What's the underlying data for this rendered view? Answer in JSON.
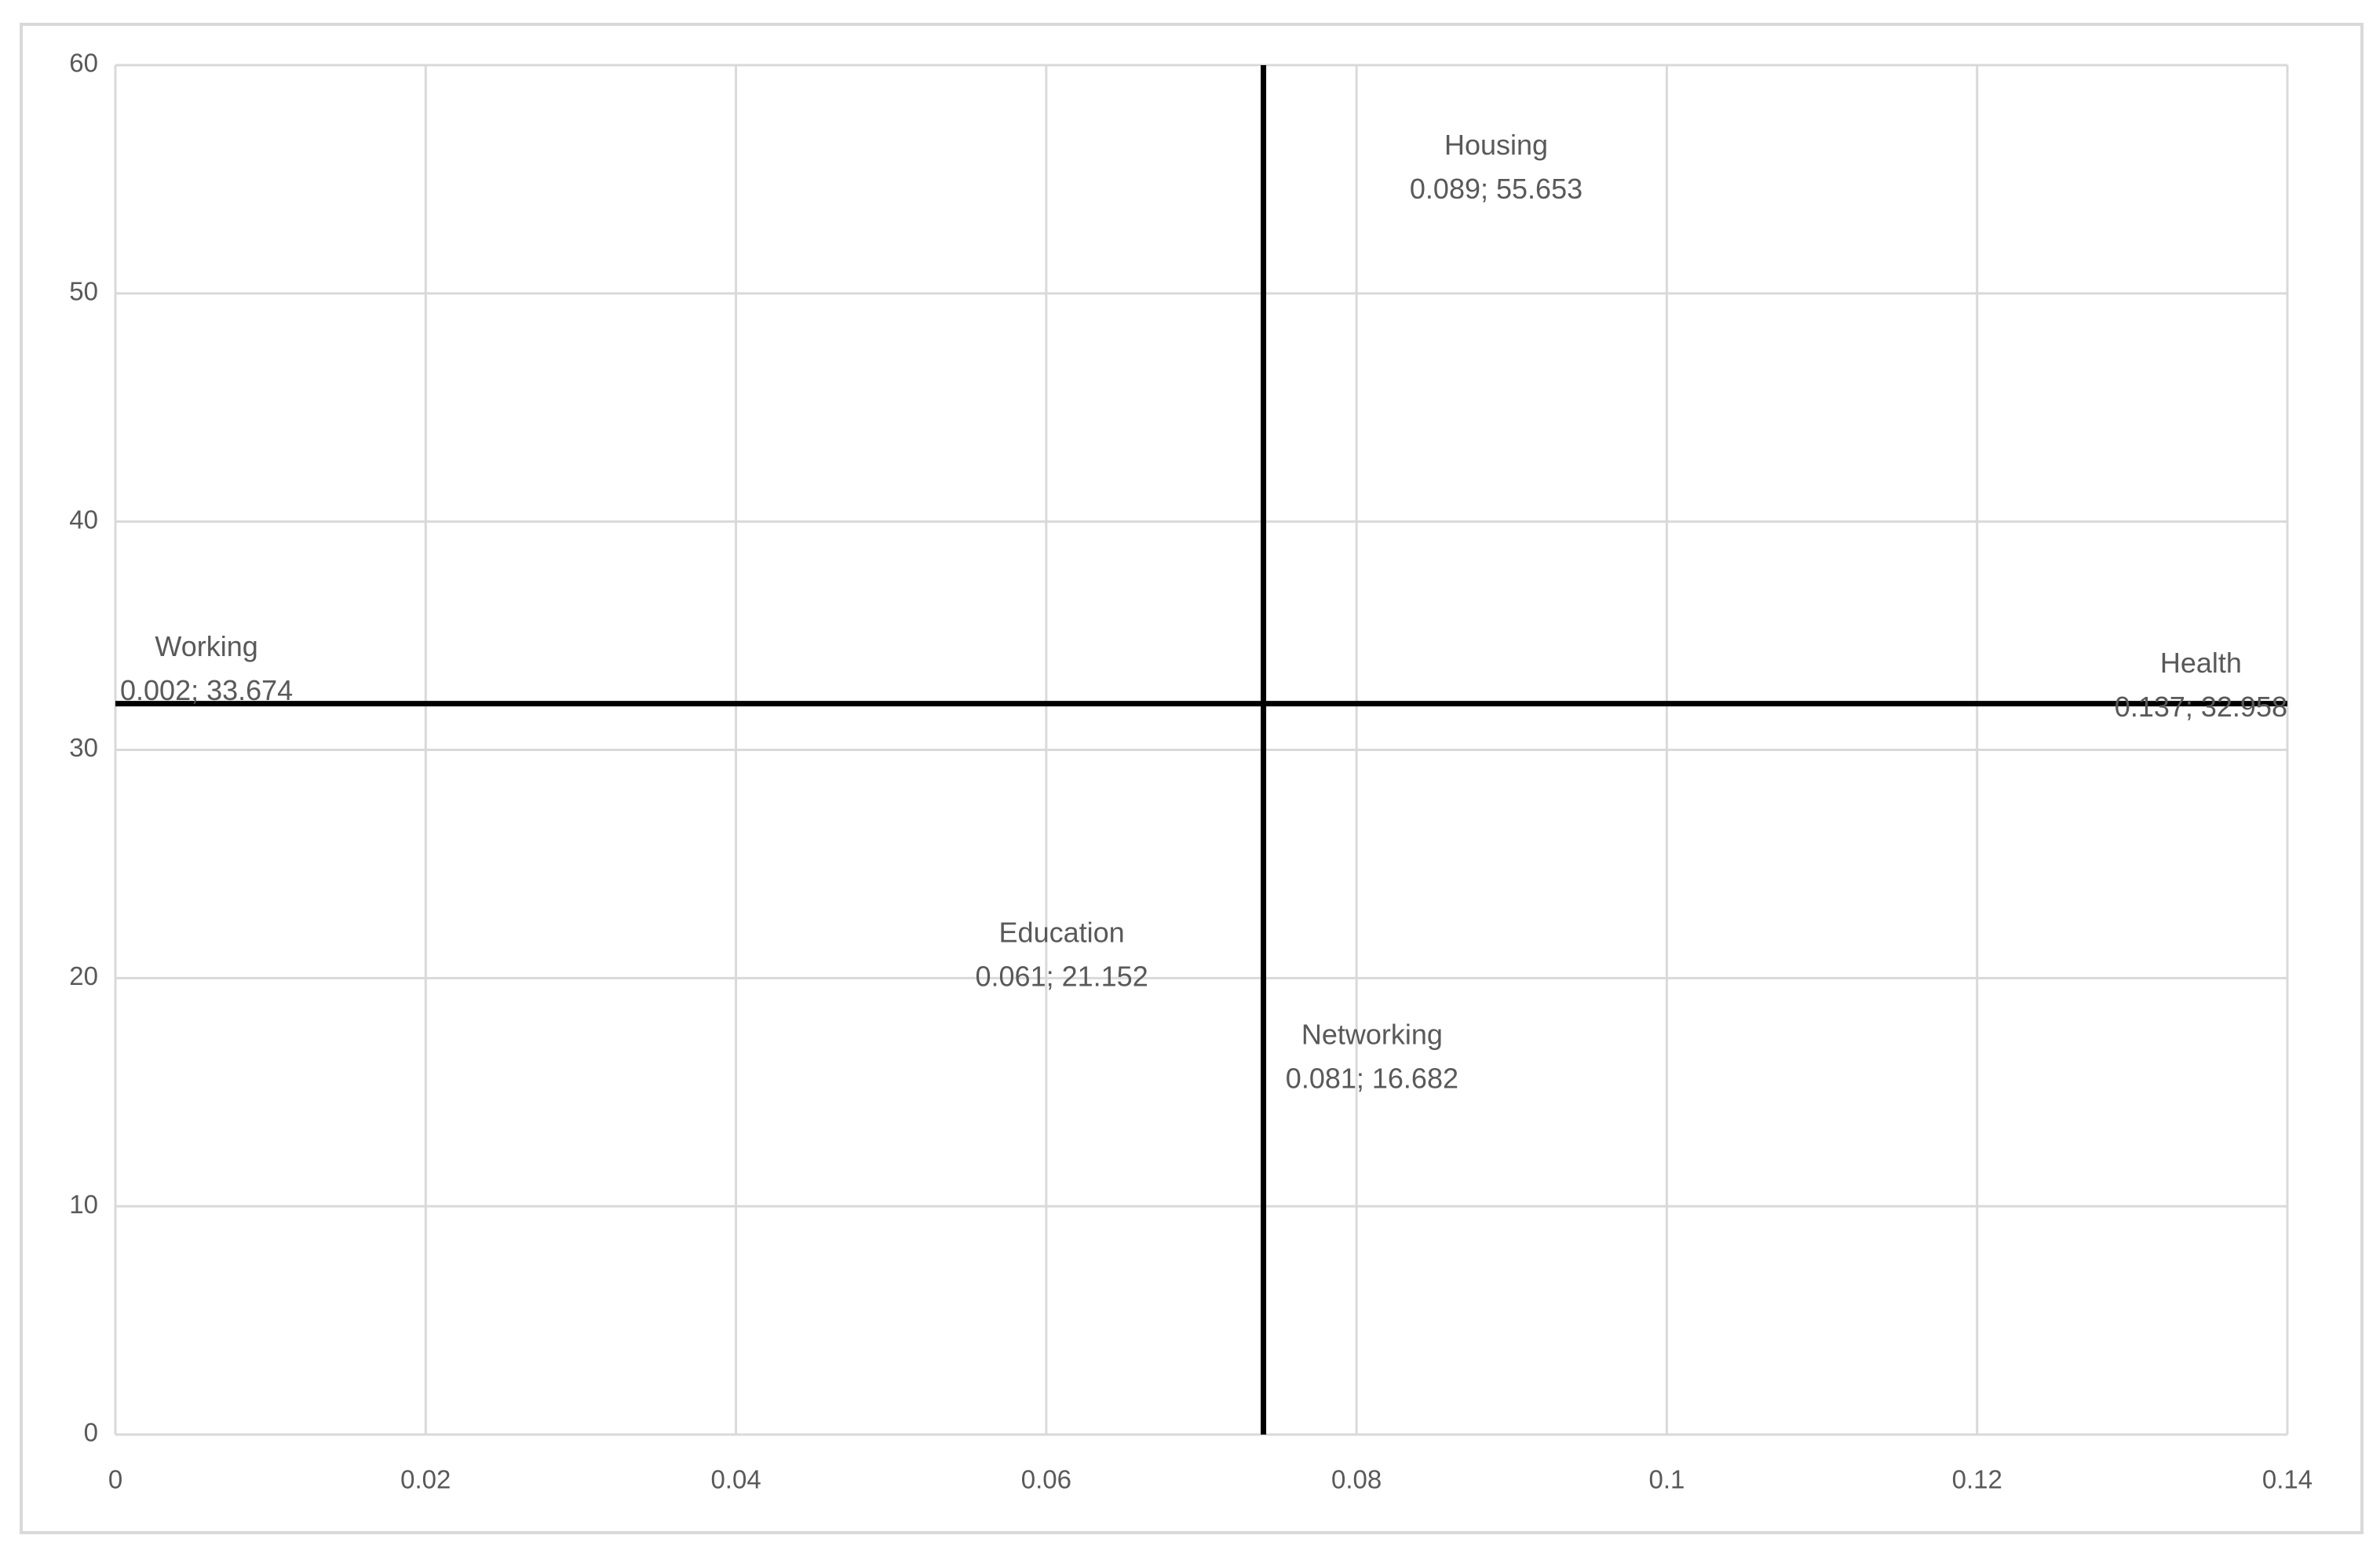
{
  "chart_data": {
    "type": "scatter",
    "categories": [
      "Working",
      "Housing",
      "Health",
      "Education",
      "Networking"
    ],
    "x": [
      0.002,
      0.089,
      0.137,
      0.061,
      0.081
    ],
    "values": [
      33.674,
      55.653,
      32.958,
      21.152,
      16.682
    ],
    "value_labels": [
      "0.002; 33.674",
      "0.089; 55.653",
      "0.137; 32.958",
      "0.061; 21.152",
      "0.081; 16.682"
    ],
    "xlim": [
      0,
      0.14
    ],
    "xticks": [
      0,
      0.02,
      0.04,
      0.06,
      0.08,
      0.1,
      0.12,
      0.14
    ],
    "ylim": [
      0,
      60
    ],
    "yticks": [
      0,
      10,
      20,
      30,
      40,
      50,
      60
    ],
    "grid": true,
    "grid_color": "#d9d9d9",
    "reference_lines": {
      "x": 0.074,
      "y": 32.024,
      "color": "#000000"
    }
  }
}
